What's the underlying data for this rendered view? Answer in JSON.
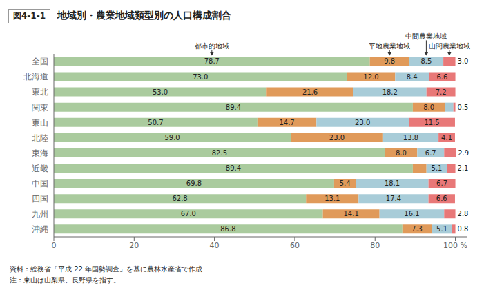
{
  "chart_data": {
    "type": "bar",
    "orientation": "horizontal",
    "stacked": true,
    "data_labels": true,
    "grid": false,
    "title": "地域別・農業地域類型別の人口構成割合",
    "subtitle": "図4-1-1",
    "categories": [
      "全国",
      "北海道",
      "東北",
      "関東",
      "東山",
      "北陸",
      "東海",
      "近畿",
      "中国",
      "四国",
      "九州",
      "沖縄"
    ],
    "series": [
      {
        "name": "都市的地域",
        "color": "#aacb9e",
        "values": [
          78.7,
          73.0,
          53.0,
          89.4,
          50.7,
          59.0,
          82.5,
          89.4,
          69.8,
          62.8,
          67.0,
          86.8
        ],
        "value_labels": [
          "78.7",
          "73.0",
          "53.0",
          "89.4",
          "50.7",
          "59.0",
          "82.5",
          "89.4",
          "69.8",
          "62.8",
          "67.0",
          "86.8"
        ]
      },
      {
        "name": "平地農業地域",
        "color": "#e09a5a",
        "values": [
          9.8,
          12.0,
          21.6,
          8.0,
          14.7,
          23.0,
          8.0,
          3.4,
          5.4,
          13.1,
          14.1,
          7.3
        ],
        "value_labels": [
          "9.8",
          "12.0",
          "21.6",
          "8.0",
          "14.7",
          "23.0",
          "8.0",
          null,
          "5.4",
          "13.1",
          "14.1",
          "7.3"
        ]
      },
      {
        "name": "中間農業地域",
        "color": "#a8ccd8",
        "values": [
          8.5,
          8.4,
          18.2,
          2.1,
          23.0,
          13.8,
          6.7,
          5.1,
          18.1,
          17.4,
          16.1,
          5.1
        ],
        "value_labels": [
          "8.5",
          "8.4",
          "18.2",
          null,
          "23.0",
          "13.8",
          "6.7",
          "5.1",
          "18.1",
          "17.4",
          "16.1",
          "5.1"
        ]
      },
      {
        "name": "山間農業地域",
        "color": "#e87878",
        "values": [
          3.0,
          6.6,
          7.2,
          0.5,
          11.5,
          4.1,
          2.9,
          2.1,
          6.7,
          6.6,
          2.8,
          0.8
        ],
        "value_labels": [
          "3.0",
          "6.6",
          "7.2",
          "0.5",
          "11.5",
          "4.1",
          "2.9",
          "2.1",
          "6.7",
          "6.6",
          "2.8",
          "0.8"
        ]
      }
    ],
    "xlim": [
      0,
      103
    ],
    "xticks": [
      0,
      20,
      40,
      60,
      80,
      {
        "value": 100,
        "label": "100 %"
      }
    ],
    "annotations": [
      "資料：総務省「平成 22 年国勢調査」を基に農林水産省で作成",
      "注：東山は山梨県、長野県を指す。"
    ]
  }
}
